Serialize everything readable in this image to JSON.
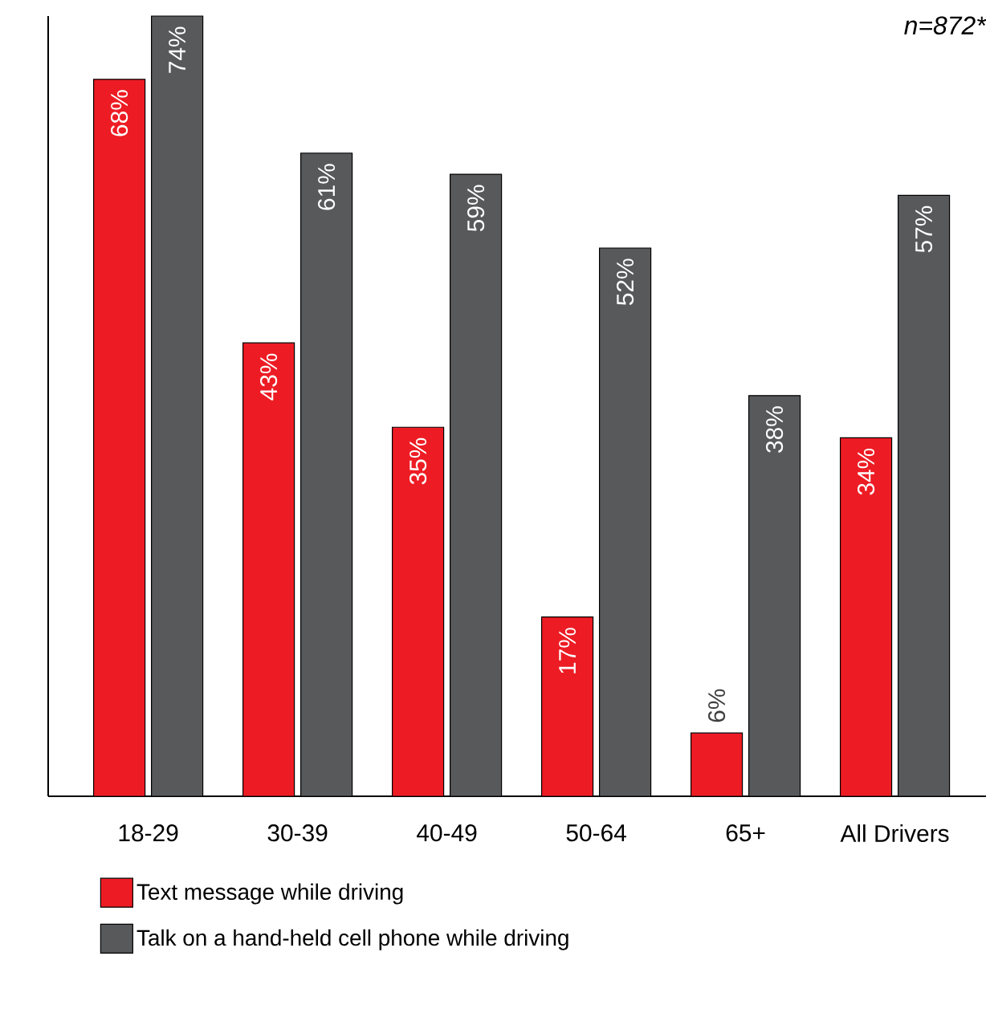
{
  "chart_data": {
    "type": "bar",
    "categories": [
      "18-29",
      "30-39",
      "40-49",
      "50-64",
      "65+",
      "All Drivers"
    ],
    "series": [
      {
        "name": "Text message while driving",
        "color": "#ed1c24",
        "values": [
          68,
          43,
          35,
          17,
          6,
          34
        ],
        "value_labels": [
          "68%",
          "43%",
          "35%",
          "17%",
          "6%",
          "34%"
        ]
      },
      {
        "name": "Talk on a hand-held cell phone while driving",
        "color": "#58595b",
        "values": [
          74,
          61,
          59,
          52,
          38,
          57
        ],
        "value_labels": [
          "74%",
          "61%",
          "59%",
          "52%",
          "38%",
          "57%"
        ]
      }
    ],
    "annotations": [
      "n=872*"
    ],
    "tick_labels": "x",
    "grid": false,
    "legend": "bottom"
  }
}
